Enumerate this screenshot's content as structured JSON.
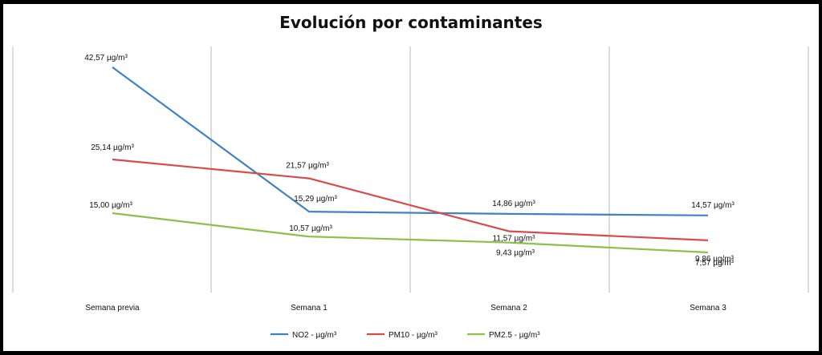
{
  "chart_data": {
    "type": "line",
    "title": "Evolución por contaminantes",
    "categories": [
      "Semana previa",
      "Semana 1",
      "Semana 2",
      "Semana 3"
    ],
    "series": [
      {
        "name": "NO2 - µg/m³",
        "color": "#3E83C5",
        "values": [
          42.57,
          15.29,
          14.86,
          14.57
        ],
        "labels": [
          "42,57 µg/m³",
          "15,29 µg/m³",
          "14,86 µg/m³",
          "14,57 µg/m³"
        ]
      },
      {
        "name": "PM10 - µg/m³",
        "color": "#D94A4A",
        "values": [
          25.14,
          21.57,
          11.57,
          9.86
        ],
        "labels": [
          "25,14 µg/m³",
          "21,57 µg/m³",
          "11,57 µg/m³",
          "9,86 µg/m³"
        ]
      },
      {
        "name": "PM2.5 - µg/m³",
        "color": "#8CC04A",
        "values": [
          15.0,
          10.57,
          9.43,
          7.57
        ],
        "labels": [
          "15,00 µg/m³",
          "10,57 µg/m³",
          "9,43 µg/m³",
          "7,57 µg/m³"
        ]
      }
    ],
    "xlabel": "",
    "ylabel": "",
    "grid": "vertical",
    "legend": "bottom"
  }
}
